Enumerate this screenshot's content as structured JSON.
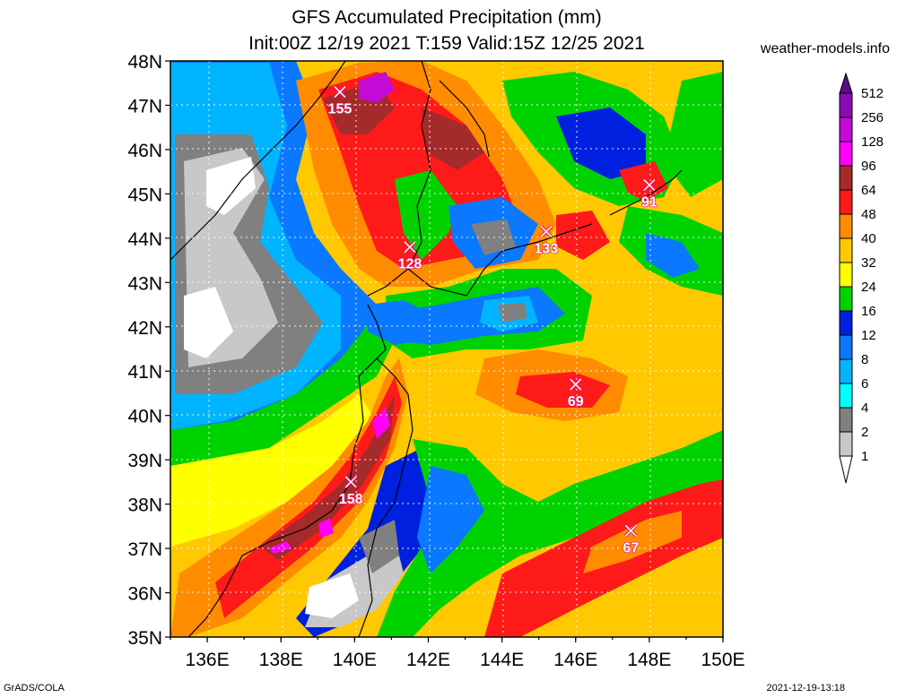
{
  "header": {
    "title_line1": "GFS Accumulated Precipitation (mm)",
    "title_line2": "Init:00Z 12/19 2021 T:159 Valid:15Z 12/25 2021",
    "site": "weather-models.info"
  },
  "axes": {
    "lat_labels": [
      "48N",
      "47N",
      "46N",
      "45N",
      "44N",
      "43N",
      "42N",
      "41N",
      "40N",
      "39N",
      "38N",
      "37N",
      "36N",
      "35N"
    ],
    "lon_labels": [
      "136E",
      "138E",
      "140E",
      "142E",
      "144E",
      "146E",
      "148E",
      "150E"
    ]
  },
  "colorbar": {
    "levels": [
      "512",
      "256",
      "128",
      "96",
      "64",
      "48",
      "40",
      "32",
      "24",
      "16",
      "12",
      "8",
      "6",
      "4",
      "2",
      "1"
    ],
    "colors": [
      "#5b0a8a",
      "#8a0bb5",
      "#c40ad6",
      "#ff00ff",
      "#a52a2a",
      "#ff1a1a",
      "#ff8c00",
      "#ffc800",
      "#ffff00",
      "#00d200",
      "#0020e0",
      "#0a78ff",
      "#00b4ff",
      "#00ffff",
      "#808080",
      "#c8c8c8",
      "#ffffff"
    ]
  },
  "peaks": [
    {
      "value": "155",
      "lon": 139.6,
      "lat": 47.3
    },
    {
      "value": "128",
      "lon": 141.5,
      "lat": 43.8
    },
    {
      "value": "133",
      "lon": 145.2,
      "lat": 44.15
    },
    {
      "value": "91",
      "lon": 148.0,
      "lat": 45.2
    },
    {
      "value": "69",
      "lon": 146.0,
      "lat": 40.7
    },
    {
      "value": "158",
      "lon": 139.9,
      "lat": 38.5
    },
    {
      "value": "67",
      "lon": 147.5,
      "lat": 37.4
    }
  ],
  "footer": {
    "credit": "GrADS/COLA",
    "timestamp": "2021-12-19-13:18"
  }
}
